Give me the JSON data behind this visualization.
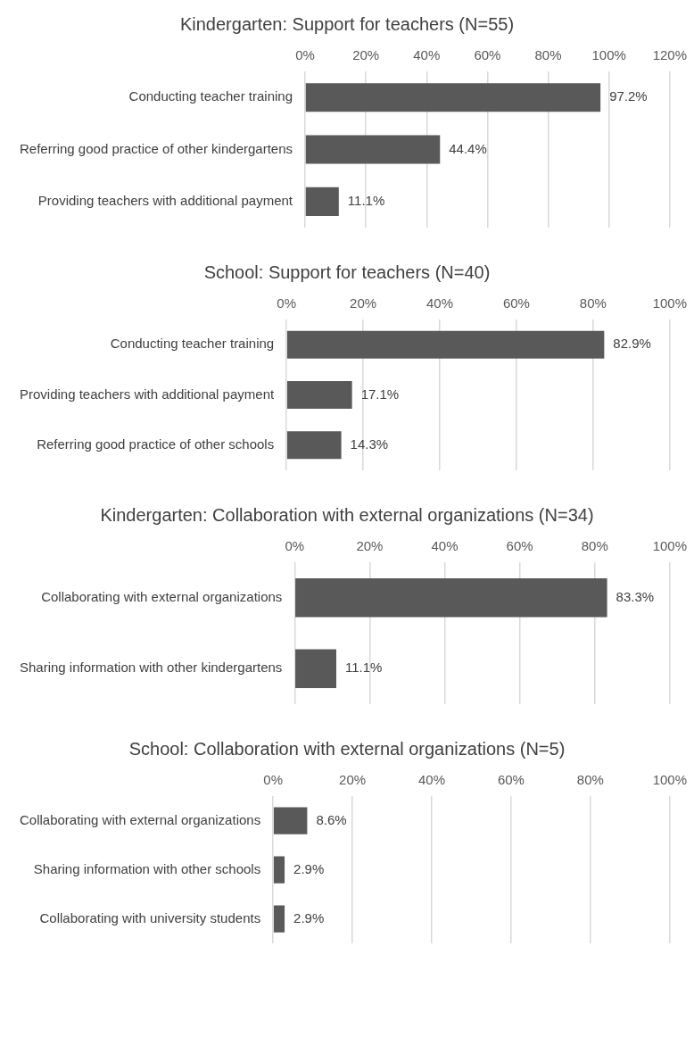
{
  "chart_data": [
    {
      "type": "bar",
      "orientation": "horizontal",
      "title": "Kindergarten: Support for teachers (N=55)",
      "categories": [
        "Conducting teacher training",
        "Referring good practice of other kindergartens",
        "Providing teachers with additional payment"
      ],
      "values": [
        97.2,
        44.4,
        11.1
      ],
      "value_labels": [
        "97.2%",
        "44.4%",
        "11.1%"
      ],
      "color": "#595959",
      "xlim": [
        0,
        120
      ],
      "xticks": [
        {
          "value": 0,
          "label": "0%"
        },
        {
          "value": 20,
          "label": "20%"
        },
        {
          "value": 40,
          "label": "40%"
        },
        {
          "value": 60,
          "label": "60%"
        },
        {
          "value": 80,
          "label": "80%"
        },
        {
          "value": 100,
          "label": "100%"
        },
        {
          "value": 120,
          "label": "120%"
        }
      ],
      "grid": "x",
      "legend": false
    },
    {
      "type": "bar",
      "orientation": "horizontal",
      "title": "School: Support for teachers (N=40)",
      "categories": [
        "Conducting teacher training",
        "Providing teachers with additional payment",
        "Referring good practice of other schools"
      ],
      "values": [
        82.9,
        17.1,
        14.3
      ],
      "value_labels": [
        "82.9%",
        "17.1%",
        "14.3%"
      ],
      "color": "#595959",
      "xlim": [
        0,
        100
      ],
      "xticks": [
        {
          "value": 0,
          "label": "0%"
        },
        {
          "value": 20,
          "label": "20%"
        },
        {
          "value": 40,
          "label": "40%"
        },
        {
          "value": 60,
          "label": "60%"
        },
        {
          "value": 80,
          "label": "80%"
        },
        {
          "value": 100,
          "label": "100%"
        }
      ],
      "grid": "x",
      "legend": false
    },
    {
      "type": "bar",
      "orientation": "horizontal",
      "title": "Kindergarten: Collaboration with external organizations (N=34)",
      "categories": [
        "Collaborating with external organizations",
        "Sharing information with other kindergartens"
      ],
      "values": [
        83.3,
        11.1
      ],
      "value_labels": [
        "83.3%",
        "11.1%"
      ],
      "color": "#595959",
      "xlim": [
        0,
        100
      ],
      "xticks": [
        {
          "value": 0,
          "label": "0%"
        },
        {
          "value": 20,
          "label": "20%"
        },
        {
          "value": 40,
          "label": "40%"
        },
        {
          "value": 60,
          "label": "60%"
        },
        {
          "value": 80,
          "label": "80%"
        },
        {
          "value": 100,
          "label": "100%"
        }
      ],
      "grid": "x",
      "legend": false
    },
    {
      "type": "bar",
      "orientation": "horizontal",
      "title": "School: Collaboration with external organizations (N=5)",
      "categories": [
        "Collaborating with external organizations",
        "Sharing information with other schools",
        "Collaborating with university students"
      ],
      "values": [
        8.6,
        2.9,
        2.9
      ],
      "value_labels": [
        "8.6%",
        "2.9%",
        "2.9%"
      ],
      "color": "#595959",
      "xlim": [
        0,
        100
      ],
      "xticks": [
        {
          "value": 0,
          "label": "0%"
        },
        {
          "value": 20,
          "label": "20%"
        },
        {
          "value": 40,
          "label": "40%"
        },
        {
          "value": 60,
          "label": "60%"
        },
        {
          "value": 80,
          "label": "80%"
        },
        {
          "value": 100,
          "label": "100%"
        }
      ],
      "grid": "x",
      "legend": false
    }
  ]
}
